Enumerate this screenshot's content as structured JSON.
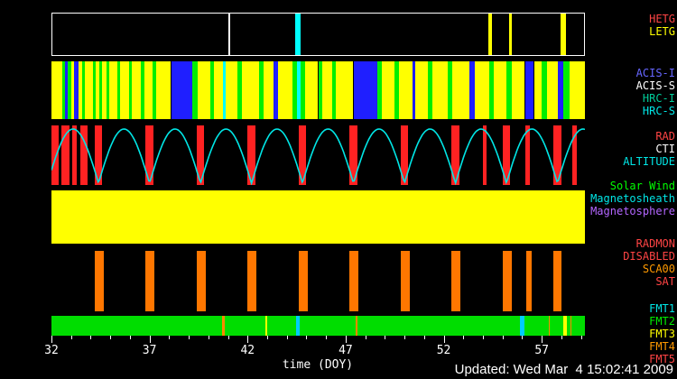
{
  "footer": {
    "updated": "Updated: Wed Mar  4 15:02:41 2009"
  },
  "right_labels": [
    {
      "band": "gratings",
      "lines": [
        {
          "text": "HETG",
          "color": "#ff4444"
        },
        {
          "text": "LETG",
          "color": "#ffff00"
        }
      ]
    },
    {
      "band": "instruments",
      "lines": [
        {
          "text": "ACIS-I",
          "color": "#6666ff"
        },
        {
          "text": "ACIS-S",
          "color": "#ffffff"
        },
        {
          "text": "HRC-I",
          "color": "#00cc99"
        },
        {
          "text": "HRC-S",
          "color": "#00e6e6"
        }
      ]
    },
    {
      "band": "radiation",
      "lines": [
        {
          "text": "RAD",
          "color": "#ff4444"
        },
        {
          "text": "CTI",
          "color": "#ffffff"
        },
        {
          "text": "ALTITUDE",
          "color": "#00e6e6"
        }
      ]
    },
    {
      "band": "region",
      "lines": [
        {
          "text": "Solar Wind",
          "color": "#00ff00"
        },
        {
          "text": "Magnetosheath",
          "color": "#00e6e6"
        },
        {
          "text": "Magnetosphere",
          "color": "#b366ff"
        }
      ]
    },
    {
      "band": "radmon",
      "lines": [
        {
          "text": "RADMON",
          "color": "#ff4444"
        },
        {
          "text": "DISABLED",
          "color": "#ff4444"
        },
        {
          "text": "SCA00",
          "color": "#ff9900"
        },
        {
          "text": "SAT",
          "color": "#ff4444"
        }
      ]
    },
    {
      "band": "telemetry",
      "lines": [
        {
          "text": "FMT1",
          "color": "#00e6e6"
        },
        {
          "text": "FMT2",
          "color": "#00ee00"
        },
        {
          "text": "FMT3",
          "color": "#ffff00"
        },
        {
          "text": "FMT4",
          "color": "#ff9900"
        },
        {
          "text": "FMT5",
          "color": "#ff4444"
        }
      ]
    }
  ],
  "chart_data": {
    "type": "timeline",
    "title": "",
    "xlabel": "time (DOY)",
    "x_range": [
      32,
      59.2
    ],
    "x_major_ticks": [
      32,
      37,
      42,
      47,
      52,
      57
    ],
    "x_minor_step": 1,
    "bands": [
      {
        "id": "gratings",
        "label": "HETG/LETG gratings",
        "background": "#000000",
        "segments": [
          {
            "start": 41.0,
            "end": 41.08,
            "color": "#ffffff"
          },
          {
            "start": 44.4,
            "end": 44.72,
            "color": "#00ffff"
          },
          {
            "start": 54.3,
            "end": 54.5,
            "color": "#ffff00"
          },
          {
            "start": 55.38,
            "end": 55.52,
            "color": "#ffff00"
          },
          {
            "start": 58.0,
            "end": 58.3,
            "color": "#ffff00"
          }
        ]
      },
      {
        "id": "instruments",
        "label": "ACIS-I / ACIS-S / HRC-I / HRC-S",
        "background": "#000000",
        "segments": [
          {
            "start": 32.0,
            "end": 32.55,
            "color": "#ffff00"
          },
          {
            "start": 32.55,
            "end": 32.7,
            "color": "#00ee00"
          },
          {
            "start": 32.7,
            "end": 32.85,
            "color": "#1f1fff"
          },
          {
            "start": 32.85,
            "end": 33.0,
            "color": "#00ee00"
          },
          {
            "start": 33.0,
            "end": 33.15,
            "color": "#ffff00"
          },
          {
            "start": 33.15,
            "end": 33.4,
            "color": "#1f1fff"
          },
          {
            "start": 33.4,
            "end": 33.55,
            "color": "#ffff00"
          },
          {
            "start": 33.55,
            "end": 33.7,
            "color": "#00ee00"
          },
          {
            "start": 33.7,
            "end": 34.1,
            "color": "#ffff00"
          },
          {
            "start": 34.1,
            "end": 34.25,
            "color": "#00ee00"
          },
          {
            "start": 34.25,
            "end": 34.45,
            "color": "#ffff00"
          },
          {
            "start": 34.45,
            "end": 34.6,
            "color": "#00ee00"
          },
          {
            "start": 34.6,
            "end": 34.8,
            "color": "#ffff00"
          },
          {
            "start": 34.8,
            "end": 34.95,
            "color": "#00ee00"
          },
          {
            "start": 34.95,
            "end": 35.35,
            "color": "#ffff00"
          },
          {
            "start": 35.35,
            "end": 35.5,
            "color": "#00ee00"
          },
          {
            "start": 35.5,
            "end": 35.95,
            "color": "#ffff00"
          },
          {
            "start": 35.95,
            "end": 36.1,
            "color": "#00ee00"
          },
          {
            "start": 36.1,
            "end": 36.55,
            "color": "#ffff00"
          },
          {
            "start": 36.55,
            "end": 36.75,
            "color": "#00ee00"
          },
          {
            "start": 36.75,
            "end": 37.15,
            "color": "#ffff00"
          },
          {
            "start": 37.15,
            "end": 37.35,
            "color": "#00ee00"
          },
          {
            "start": 37.35,
            "end": 38.08,
            "color": "#ffff00"
          },
          {
            "start": 38.1,
            "end": 39.2,
            "color": "#1f1fff"
          },
          {
            "start": 39.2,
            "end": 39.45,
            "color": "#00ee00"
          },
          {
            "start": 39.45,
            "end": 40.1,
            "color": "#ffff00"
          },
          {
            "start": 40.1,
            "end": 40.3,
            "color": "#00ee00"
          },
          {
            "start": 40.3,
            "end": 40.75,
            "color": "#ffff00"
          },
          {
            "start": 40.75,
            "end": 40.88,
            "color": "#00ffff"
          },
          {
            "start": 40.88,
            "end": 41.5,
            "color": "#ffff00"
          },
          {
            "start": 41.5,
            "end": 41.7,
            "color": "#00ee00"
          },
          {
            "start": 41.7,
            "end": 42.6,
            "color": "#ffff00"
          },
          {
            "start": 42.6,
            "end": 42.8,
            "color": "#00ee00"
          },
          {
            "start": 42.8,
            "end": 43.3,
            "color": "#ffff00"
          },
          {
            "start": 43.3,
            "end": 43.55,
            "color": "#1f1fff"
          },
          {
            "start": 43.55,
            "end": 44.3,
            "color": "#ffff00"
          },
          {
            "start": 44.3,
            "end": 44.5,
            "color": "#00ee00"
          },
          {
            "start": 44.5,
            "end": 44.72,
            "color": "#00ffff"
          },
          {
            "start": 44.72,
            "end": 44.95,
            "color": "#00ee00"
          },
          {
            "start": 44.95,
            "end": 45.6,
            "color": "#ffff00"
          },
          {
            "start": 45.6,
            "end": 45.8,
            "color": "#00ee00"
          },
          {
            "start": 45.8,
            "end": 46.3,
            "color": "#ffff00"
          },
          {
            "start": 46.3,
            "end": 46.5,
            "color": "#00ee00"
          },
          {
            "start": 46.5,
            "end": 47.38,
            "color": "#ffff00"
          },
          {
            "start": 47.4,
            "end": 48.6,
            "color": "#1f1fff"
          },
          {
            "start": 48.6,
            "end": 48.85,
            "color": "#00ee00"
          },
          {
            "start": 48.85,
            "end": 49.5,
            "color": "#ffff00"
          },
          {
            "start": 49.5,
            "end": 49.7,
            "color": "#00ee00"
          },
          {
            "start": 49.7,
            "end": 50.4,
            "color": "#ffff00"
          },
          {
            "start": 50.4,
            "end": 50.55,
            "color": "#1f1fff"
          },
          {
            "start": 50.55,
            "end": 51.2,
            "color": "#ffff00"
          },
          {
            "start": 51.2,
            "end": 51.4,
            "color": "#00ee00"
          },
          {
            "start": 51.4,
            "end": 52.2,
            "color": "#ffff00"
          },
          {
            "start": 52.2,
            "end": 52.45,
            "color": "#00ee00"
          },
          {
            "start": 52.45,
            "end": 53.3,
            "color": "#ffff00"
          },
          {
            "start": 53.3,
            "end": 53.6,
            "color": "#1f1fff"
          },
          {
            "start": 53.6,
            "end": 54.3,
            "color": "#ffff00"
          },
          {
            "start": 54.3,
            "end": 54.55,
            "color": "#00ee00"
          },
          {
            "start": 54.55,
            "end": 55.2,
            "color": "#ffff00"
          },
          {
            "start": 55.2,
            "end": 55.45,
            "color": "#00ee00"
          },
          {
            "start": 55.45,
            "end": 56.13,
            "color": "#ffff00"
          },
          {
            "start": 56.15,
            "end": 56.6,
            "color": "#1f1fff"
          },
          {
            "start": 56.6,
            "end": 57.0,
            "color": "#ffff00"
          },
          {
            "start": 57.0,
            "end": 57.25,
            "color": "#00ee00"
          },
          {
            "start": 57.25,
            "end": 57.8,
            "color": "#ffff00"
          },
          {
            "start": 57.8,
            "end": 58.1,
            "color": "#1f1fff"
          },
          {
            "start": 58.1,
            "end": 58.4,
            "color": "#00ee00"
          },
          {
            "start": 58.4,
            "end": 59.2,
            "color": "#ffff00"
          }
        ]
      },
      {
        "id": "radiation",
        "label": "RAD / CTI / ALTITUDE",
        "background": "#000000",
        "curve": {
          "name": "altitude",
          "color": "#00e6e6",
          "period_days": 2.6,
          "first_perigee_doy": 31.8
        },
        "segments": [
          {
            "start": 32.0,
            "end": 32.35,
            "color": "#ff2222"
          },
          {
            "start": 32.5,
            "end": 32.9,
            "color": "#ff2222"
          },
          {
            "start": 33.05,
            "end": 33.3,
            "color": "#ff2222"
          },
          {
            "start": 33.45,
            "end": 33.85,
            "color": "#ff2222"
          },
          {
            "start": 34.2,
            "end": 34.6,
            "color": "#ff2222"
          },
          {
            "start": 36.8,
            "end": 37.2,
            "color": "#ff2222"
          },
          {
            "start": 39.4,
            "end": 39.8,
            "color": "#ff2222"
          },
          {
            "start": 42.0,
            "end": 42.4,
            "color": "#ff2222"
          },
          {
            "start": 44.6,
            "end": 45.0,
            "color": "#ff2222"
          },
          {
            "start": 47.2,
            "end": 47.6,
            "color": "#ff2222"
          },
          {
            "start": 49.8,
            "end": 50.2,
            "color": "#ff2222"
          },
          {
            "start": 52.4,
            "end": 52.8,
            "color": "#ff2222"
          },
          {
            "start": 54.0,
            "end": 54.2,
            "color": "#ff2222"
          },
          {
            "start": 55.0,
            "end": 55.4,
            "color": "#ff2222"
          },
          {
            "start": 56.15,
            "end": 56.4,
            "color": "#ff2222"
          },
          {
            "start": 57.6,
            "end": 58.0,
            "color": "#ff2222"
          },
          {
            "start": 58.55,
            "end": 58.8,
            "color": "#ff2222"
          }
        ]
      },
      {
        "id": "region",
        "label": "Solar Wind / Magnetosheath / Magnetosphere",
        "background": "#ffff00",
        "segments": []
      },
      {
        "id": "radmon",
        "label": "RADMON / DISABLED / SCA00 / SAT",
        "background": "#000000",
        "segments": [
          {
            "start": 34.2,
            "end": 34.65,
            "color": "#ff7700"
          },
          {
            "start": 36.8,
            "end": 37.25,
            "color": "#ff7700"
          },
          {
            "start": 39.4,
            "end": 39.85,
            "color": "#ff7700"
          },
          {
            "start": 42.0,
            "end": 42.45,
            "color": "#ff7700"
          },
          {
            "start": 44.6,
            "end": 45.05,
            "color": "#ff7700"
          },
          {
            "start": 47.2,
            "end": 47.65,
            "color": "#ff7700"
          },
          {
            "start": 49.8,
            "end": 50.25,
            "color": "#ff7700"
          },
          {
            "start": 52.4,
            "end": 52.85,
            "color": "#ff7700"
          },
          {
            "start": 55.0,
            "end": 55.45,
            "color": "#ff7700"
          },
          {
            "start": 56.2,
            "end": 56.5,
            "color": "#ff7700"
          },
          {
            "start": 57.6,
            "end": 58.0,
            "color": "#ff7700"
          }
        ]
      },
      {
        "id": "telemetry",
        "label": "FMT1-FMT5",
        "background": "#00dd00",
        "segments": [
          {
            "start": 40.68,
            "end": 40.85,
            "color": "#ff8800"
          },
          {
            "start": 42.9,
            "end": 42.98,
            "color": "#ffff00"
          },
          {
            "start": 44.45,
            "end": 44.65,
            "color": "#00ccff"
          },
          {
            "start": 47.5,
            "end": 47.58,
            "color": "#ff8800"
          },
          {
            "start": 55.9,
            "end": 56.12,
            "color": "#00ccff"
          },
          {
            "start": 57.35,
            "end": 57.42,
            "color": "#ff8800"
          },
          {
            "start": 58.1,
            "end": 58.3,
            "color": "#ffff00"
          },
          {
            "start": 58.45,
            "end": 58.52,
            "color": "#ff8800"
          }
        ]
      }
    ]
  }
}
